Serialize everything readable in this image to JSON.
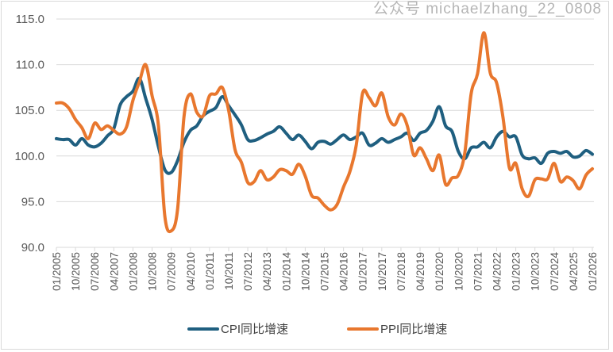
{
  "chart_data": {
    "type": "line",
    "title": "",
    "xlabel": "",
    "ylabel": "",
    "ylim": [
      90,
      115
    ],
    "yticks": [
      "90.0",
      "95.0",
      "100.0",
      "105.0",
      "110.0",
      "115.0"
    ],
    "grid": true,
    "legend_position": "bottom",
    "x_start": "01/2005",
    "x_step_months": 3,
    "xticks": [
      "01/2005",
      "10/2005",
      "07/2006",
      "04/2007",
      "01/2008",
      "10/2008",
      "07/2009",
      "04/2010",
      "01/2011",
      "10/2011",
      "07/2012",
      "04/2013",
      "01/2014",
      "10/2014",
      "07/2015",
      "04/2016",
      "01/2017",
      "10/2017",
      "07/2018",
      "04/2019",
      "01/2020",
      "10/2020",
      "07/2021",
      "04/2022",
      "01/2023",
      "10/2023",
      "07/2024",
      "04/2025",
      "01/2026"
    ],
    "series": [
      {
        "name": "CPI同比增速",
        "color": "#1f5f80",
        "values": [
          101.9,
          101.8,
          101.8,
          101.2,
          101.9,
          101.2,
          101.0,
          101.4,
          102.2,
          103.0,
          105.6,
          106.5,
          107.1,
          108.5,
          106.3,
          104.0,
          101.0,
          98.5,
          98.2,
          99.5,
          101.5,
          102.8,
          103.3,
          104.4,
          104.9,
          105.3,
          106.5,
          105.5,
          104.5,
          103.4,
          101.8,
          101.7,
          102.0,
          102.4,
          102.7,
          103.2,
          102.5,
          101.8,
          102.3,
          101.6,
          100.8,
          101.5,
          101.6,
          101.3,
          101.8,
          102.3,
          101.8,
          102.1,
          102.5,
          101.2,
          101.4,
          101.9,
          101.5,
          101.8,
          102.1,
          102.5,
          101.7,
          102.5,
          102.8,
          103.8,
          105.4,
          103.3,
          102.7,
          100.5,
          99.7,
          100.9,
          101.0,
          101.5,
          100.9,
          102.1,
          102.7,
          102.1,
          102.1,
          100.1,
          99.7,
          99.8,
          99.2,
          100.3,
          100.5,
          100.3,
          100.5,
          99.9,
          100.0,
          100.6,
          100.2
        ]
      },
      {
        "name": "PPI同比增速",
        "color": "#e8772e",
        "values": [
          105.8,
          105.8,
          105.2,
          104.0,
          103.1,
          101.9,
          103.6,
          102.9,
          103.3,
          102.8,
          102.4,
          103.2,
          106.1,
          108.1,
          110.0,
          106.6,
          103.3,
          93.4,
          91.8,
          94.2,
          104.3,
          106.8,
          104.8,
          104.4,
          106.6,
          106.8,
          107.5,
          105.0,
          100.7,
          99.3,
          97.1,
          97.2,
          98.4,
          97.4,
          97.7,
          98.5,
          98.4,
          98.0,
          99.1,
          97.8,
          95.7,
          95.4,
          94.6,
          94.1,
          94.7,
          96.6,
          98.3,
          101.2,
          106.9,
          106.4,
          105.5,
          106.9,
          104.3,
          103.4,
          104.6,
          103.3,
          100.1,
          100.9,
          99.7,
          98.4,
          100.1,
          96.9,
          97.6,
          97.9,
          100.3,
          106.8,
          109.0,
          113.5,
          109.1,
          108.0,
          104.2,
          98.7,
          99.2,
          96.4,
          95.6,
          97.4,
          97.5,
          97.5,
          99.2,
          97.2,
          97.7,
          97.3,
          96.4,
          97.9,
          98.6
        ]
      }
    ]
  },
  "legend": {
    "cpi": "CPI同比增速",
    "ppi": "PPI同比增速"
  },
  "watermark": "公众号 michaelzhang_22_0808"
}
